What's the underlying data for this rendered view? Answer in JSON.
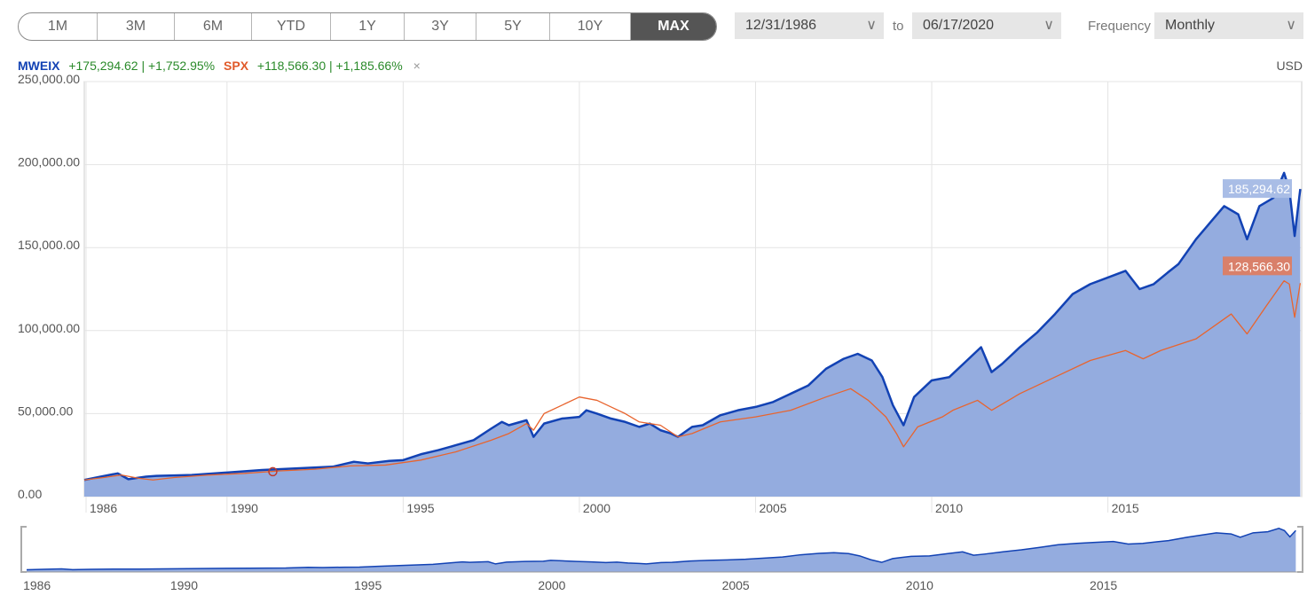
{
  "periods": [
    "1M",
    "3M",
    "6M",
    "YTD",
    "1Y",
    "3Y",
    "5Y",
    "10Y",
    "MAX"
  ],
  "active_period": "MAX",
  "date_from": "12/31/1986",
  "date_to": "06/17/2020",
  "to_label": "to",
  "frequency_label": "Frequency",
  "frequency_value": "Monthly",
  "currency": "USD",
  "legend": {
    "s1_name": "MWEIX",
    "s1_change": "+175,294.62 | +1,752.95%",
    "s2_name": "SPX",
    "s2_change": "+118,566.30 | +1,185.66%",
    "close": "×"
  },
  "colors": {
    "mweix": "#1242b4",
    "mweix_fill": "#94acdf",
    "spx": "#e8642e"
  },
  "icons": {
    "dropdown": "chevron-down-icon",
    "close": "close-icon"
  },
  "chart_data": {
    "type": "area",
    "y_ticks": [
      "250,000.00",
      "200,000.00",
      "150,000.00",
      "100,000.00",
      "50,000.00",
      "0.00"
    ],
    "ylim": [
      0,
      250000
    ],
    "x_ticks": [
      "1986",
      "1990",
      "1995",
      "2000",
      "2005",
      "2010",
      "2015"
    ],
    "nav_ticks": [
      "1986",
      "1990",
      "1995",
      "2000",
      "2005",
      "2010",
      "2015"
    ],
    "xlim": [
      1985.95,
      2020.5
    ],
    "end_labels": {
      "mweix": "185,294.62",
      "spx": "128,566.30"
    },
    "series": [
      {
        "name": "MWEIX",
        "x": [
          1985.95,
          1986.4,
          1986.9,
          1987.2,
          1987.7,
          1988.0,
          1989.0,
          1990.0,
          1991.0,
          1992.0,
          1993.0,
          1993.6,
          1994.0,
          1994.6,
          1995.0,
          1995.5,
          1996.0,
          1996.5,
          1997.0,
          1997.5,
          1997.8,
          1998.0,
          1998.5,
          1998.7,
          1999.0,
          1999.5,
          2000.0,
          2000.2,
          2000.5,
          2000.9,
          2001.3,
          2001.7,
          2002.0,
          2002.3,
          2002.6,
          2002.8,
          2003.2,
          2003.5,
          2004.0,
          2004.5,
          2005.0,
          2005.5,
          2006.0,
          2006.5,
          2007.0,
          2007.5,
          2007.9,
          2008.3,
          2008.6,
          2008.9,
          2009.2,
          2009.5,
          2010.0,
          2010.5,
          2011.0,
          2011.4,
          2011.7,
          2012.0,
          2012.5,
          2013.0,
          2013.5,
          2014.0,
          2014.5,
          2015.0,
          2015.5,
          2015.9,
          2016.3,
          2016.7,
          2017.0,
          2017.5,
          2017.9,
          2018.3,
          2018.7,
          2018.95,
          2019.3,
          2019.7,
          2020.0,
          2020.15,
          2020.3,
          2020.46
        ],
        "values": [
          10000,
          12000,
          14000,
          10500,
          12000,
          12500,
          13000,
          14500,
          16000,
          17000,
          18000,
          21000,
          20000,
          21500,
          22000,
          25500,
          28000,
          31000,
          34000,
          41000,
          45000,
          43000,
          46000,
          36000,
          44000,
          47000,
          48000,
          52000,
          50000,
          47000,
          45000,
          42000,
          44000,
          40000,
          38000,
          36000,
          42000,
          43000,
          49000,
          52000,
          54000,
          57000,
          62000,
          67000,
          77000,
          83000,
          86000,
          82000,
          72000,
          55000,
          43000,
          60000,
          70000,
          72000,
          82000,
          90000,
          75000,
          80000,
          90000,
          99000,
          110000,
          122000,
          128000,
          132000,
          136000,
          125000,
          128000,
          135000,
          140000,
          155000,
          165000,
          175000,
          170000,
          155000,
          175000,
          180000,
          195000,
          185000,
          157000,
          185294.62
        ]
      },
      {
        "name": "SPX",
        "x": [
          1985.95,
          1986.5,
          1987.0,
          1987.5,
          1987.9,
          1988.5,
          1989.5,
          1990.5,
          1991.5,
          1992.5,
          1993.5,
          1994.5,
          1995.5,
          1996.5,
          1997.5,
          1998.0,
          1998.5,
          1998.7,
          1999.0,
          1999.5,
          2000.0,
          2000.5,
          2000.9,
          2001.3,
          2001.7,
          2002.3,
          2002.8,
          2003.2,
          2004.0,
          2005.0,
          2006.0,
          2007.0,
          2007.7,
          2008.2,
          2008.7,
          2009.0,
          2009.2,
          2009.6,
          2010.3,
          2010.6,
          2011.3,
          2011.7,
          2012.5,
          2013.5,
          2014.5,
          2015.5,
          2016.0,
          2016.5,
          2017.5,
          2018.5,
          2018.95,
          2019.5,
          2020.0,
          2020.15,
          2020.3,
          2020.46
        ],
        "values": [
          10000,
          11500,
          13000,
          11000,
          10000,
          11500,
          13000,
          14000,
          15500,
          16500,
          18500,
          19000,
          22000,
          27000,
          34000,
          38000,
          44000,
          40000,
          50000,
          55000,
          60000,
          58000,
          54000,
          50000,
          45000,
          43000,
          36000,
          38000,
          45000,
          48000,
          52000,
          60000,
          65000,
          58000,
          48000,
          38000,
          30000,
          42000,
          48000,
          52000,
          58000,
          52000,
          62000,
          72000,
          82000,
          88000,
          83000,
          88000,
          95000,
          110000,
          98000,
          115000,
          130000,
          128000,
          108000,
          128566.3
        ]
      }
    ]
  }
}
